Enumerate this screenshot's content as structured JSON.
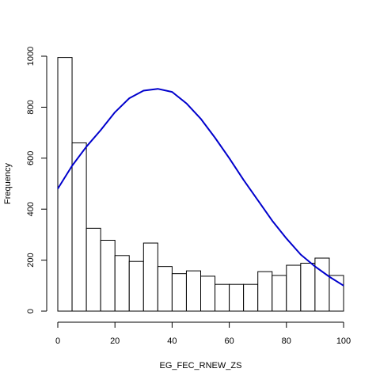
{
  "chart_data": {
    "type": "bar",
    "title": "",
    "xlabel": "EG_FEC_RNEW_ZS",
    "ylabel": "Frequency",
    "bin_edges": [
      0,
      5,
      10,
      15,
      20,
      25,
      30,
      35,
      40,
      45,
      50,
      55,
      60,
      65,
      70,
      75,
      80,
      85,
      90,
      95,
      100
    ],
    "values": [
      995,
      660,
      325,
      278,
      218,
      195,
      267,
      175,
      147,
      158,
      137,
      105,
      105,
      105,
      155,
      140,
      180,
      188,
      208,
      140
    ],
    "xlim": [
      0,
      100
    ],
    "ylim": [
      0,
      1000
    ],
    "x_ticks": [
      0,
      20,
      40,
      60,
      80,
      100
    ],
    "y_ticks": [
      0,
      200,
      400,
      600,
      800,
      1000
    ],
    "x_tick_labels": [
      "0",
      "20",
      "40",
      "60",
      "80",
      "100"
    ],
    "y_tick_labels": [
      "0",
      "200",
      "400",
      "600",
      "800",
      "1000"
    ],
    "grid": false,
    "legend": "none",
    "bar_fill": "#ffffff",
    "bar_stroke": "#000000",
    "density_curve": {
      "color": "#0000cc",
      "x": [
        0,
        5,
        10,
        15,
        20,
        25,
        30,
        35,
        40,
        45,
        50,
        55,
        60,
        65,
        70,
        75,
        80,
        85,
        90,
        95,
        100
      ],
      "y": [
        480,
        570,
        645,
        710,
        780,
        835,
        865,
        872,
        860,
        815,
        755,
        680,
        600,
        515,
        435,
        355,
        285,
        222,
        175,
        135,
        100
      ]
    }
  }
}
